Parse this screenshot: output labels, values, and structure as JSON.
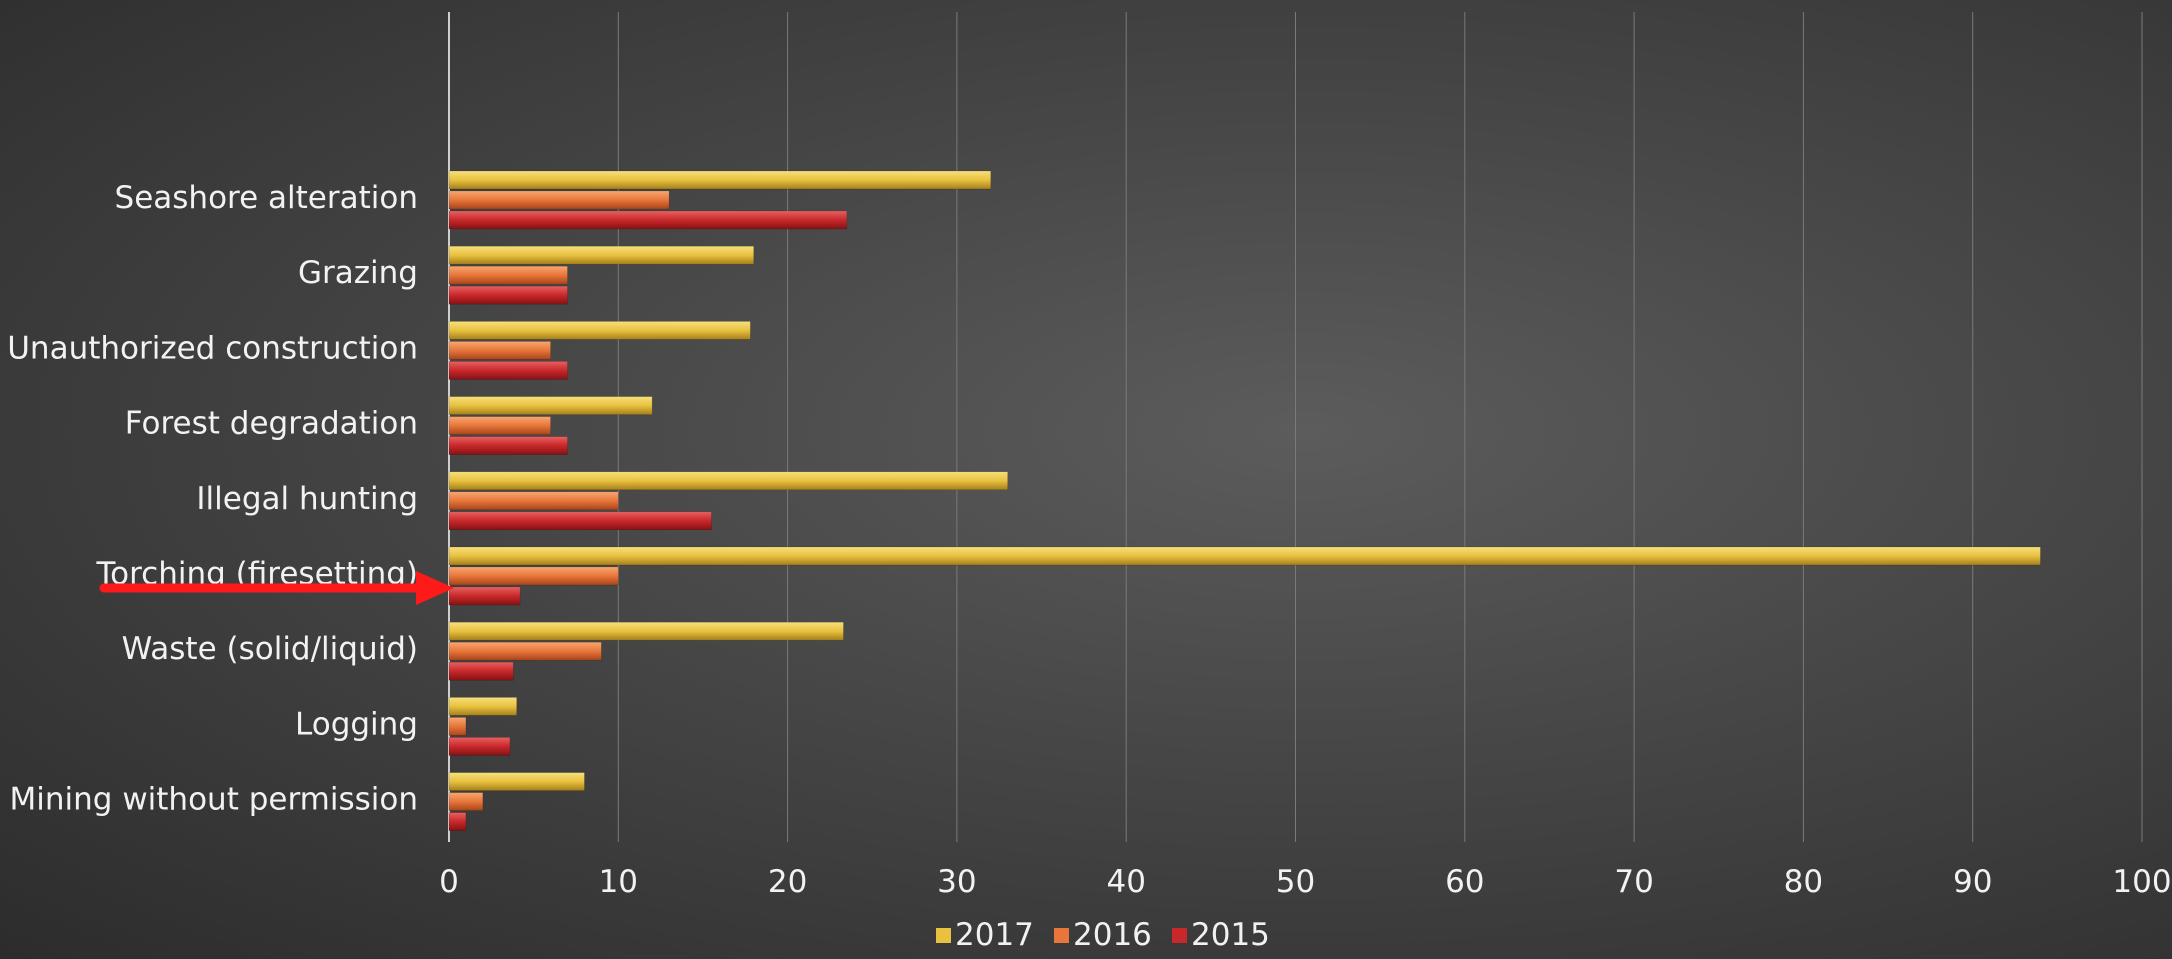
{
  "chart_data": {
    "type": "bar",
    "orientation": "horizontal",
    "categories": [
      "Seashore alteration",
      "Grazing",
      "Unauthorized construction",
      "Forest degradation",
      "Illegal hunting",
      "Torching (firesetting)",
      "Waste (solid/liquid)",
      "Logging",
      "Mining without permission"
    ],
    "series": [
      {
        "name": "2017",
        "color": "#e8c13f",
        "values": [
          32,
          18,
          17.8,
          12,
          33,
          94,
          23.3,
          4,
          8
        ]
      },
      {
        "name": "2016",
        "color": "#e8763a",
        "values": [
          13,
          7,
          6,
          6,
          10,
          10,
          9,
          1,
          2
        ]
      },
      {
        "name": "2015",
        "color": "#c8282a",
        "values": [
          23.5,
          7,
          7,
          7,
          15.5,
          4.2,
          3.8,
          3.6,
          1
        ]
      }
    ],
    "xlim": [
      0,
      100
    ],
    "xticks": [
      "0",
      "10",
      "20",
      "30",
      "40",
      "50",
      "60",
      "70",
      "80",
      "90",
      "100"
    ],
    "grid": true,
    "legend_position": "bottom",
    "annotation": {
      "type": "arrow",
      "color": "#ff1a1a",
      "target_category": "Torching (firesetting)"
    }
  }
}
